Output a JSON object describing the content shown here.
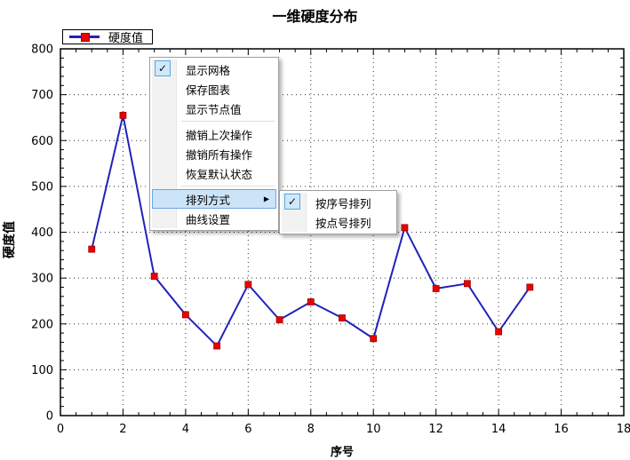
{
  "chart": {
    "title": "一维硬度分布",
    "legend_label": "硬度值",
    "colors": {
      "line": "#2222bb",
      "marker": "#ee0000",
      "marker_border": "#990000",
      "grid": "#333333",
      "axis": "#000000",
      "menu_highlight": "#cce4f7",
      "menu_highlight_border": "#66a7e8"
    }
  },
  "chart_data": {
    "type": "line",
    "title": "一维硬度分布",
    "xlabel": "序号",
    "ylabel": "硬度值",
    "legend": [
      "硬度值"
    ],
    "x": [
      1,
      2,
      3,
      4,
      5,
      6,
      7,
      8,
      9,
      10,
      11,
      12,
      13,
      14,
      15
    ],
    "series": [
      {
        "name": "硬度值",
        "values": [
          363,
          655,
          304,
          220,
          152,
          286,
          209,
          248,
          213,
          168,
          410,
          277,
          288,
          183,
          280
        ]
      }
    ],
    "xlim": [
      0,
      18
    ],
    "ylim": [
      0,
      800
    ],
    "x_major_step": 2,
    "x_minor_step": 0.5,
    "y_major_step": 100,
    "y_minor_step": 20,
    "x_tick_labels": [
      "0",
      "2",
      "4",
      "6",
      "8",
      "10",
      "12",
      "14",
      "16",
      "18"
    ],
    "y_tick_labels": [
      "0",
      "100",
      "200",
      "300",
      "400",
      "500",
      "600",
      "700",
      "800"
    ],
    "grid": true,
    "legend_position": "top-left",
    "marker": "square"
  },
  "context_menu": {
    "icons": {
      "check": "✓",
      "submenu_arrow": "▶"
    },
    "items": [
      {
        "label": "显示网格",
        "checked": true
      },
      {
        "label": "保存图表"
      },
      {
        "label": "显示节点值"
      },
      {
        "label": "撤销上次操作"
      },
      {
        "label": "撤销所有操作"
      },
      {
        "label": "恢复默认状态"
      },
      {
        "label": "排列方式",
        "highlighted": true,
        "has_submenu": true
      },
      {
        "label": "曲线设置"
      }
    ],
    "submenu": {
      "items": [
        {
          "label": "按序号排列",
          "checked": true
        },
        {
          "label": "按点号排列"
        }
      ]
    }
  }
}
